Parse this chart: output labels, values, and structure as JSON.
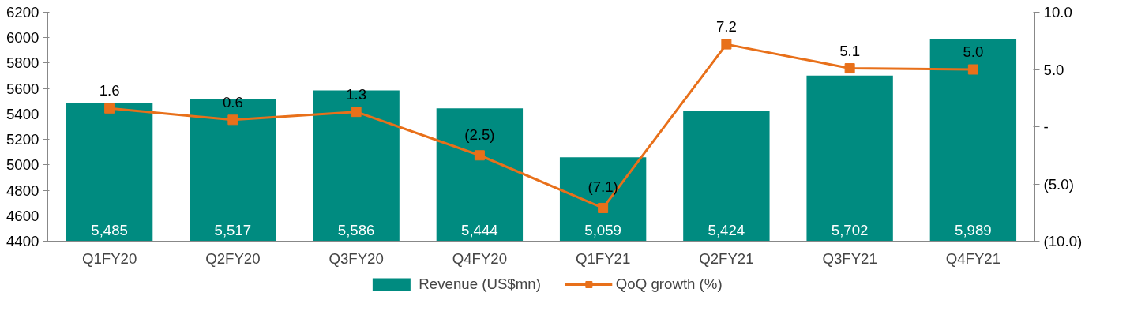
{
  "chart_data": {
    "type": "bar",
    "categories": [
      "Q1FY20",
      "Q2FY20",
      "Q3FY20",
      "Q4FY20",
      "Q1FY21",
      "Q2FY21",
      "Q3FY21",
      "Q4FY21"
    ],
    "series": [
      {
        "name": "Revenue (US$mn)",
        "color": "#008b80",
        "values": [
          5485,
          5517,
          5586,
          5444,
          5059,
          5424,
          5702,
          5989
        ],
        "value_labels": [
          "5,485",
          "5,517",
          "5,586",
          "5,444",
          "5,059",
          "5,424",
          "5,702",
          "5,989"
        ]
      },
      {
        "name": "QoQ growth (%)",
        "type": "line",
        "axis": "y2",
        "color": "#e8701a",
        "marker": "square",
        "values": [
          1.6,
          0.6,
          1.3,
          -2.5,
          -7.1,
          7.2,
          5.1,
          5.0
        ],
        "value_labels": [
          "1.6",
          "0.6",
          "1.3",
          "(2.5)",
          "(7.1)",
          "7.2",
          "5.1",
          "5.0"
        ]
      }
    ],
    "ylim": [
      4400,
      6200
    ],
    "yticks": [
      4400,
      4600,
      4800,
      5000,
      5200,
      5400,
      5600,
      5800,
      6000,
      6200
    ],
    "y2lim": [
      -10,
      10
    ],
    "y2ticks": [
      {
        "value": -10,
        "label": "(10.0)"
      },
      {
        "value": -5,
        "label": "(5.0)"
      },
      {
        "value": 0,
        "label": "-"
      },
      {
        "value": 5,
        "label": "5.0"
      },
      {
        "value": 10,
        "label": "10.0"
      }
    ],
    "grid": false,
    "legend": "bottom"
  }
}
